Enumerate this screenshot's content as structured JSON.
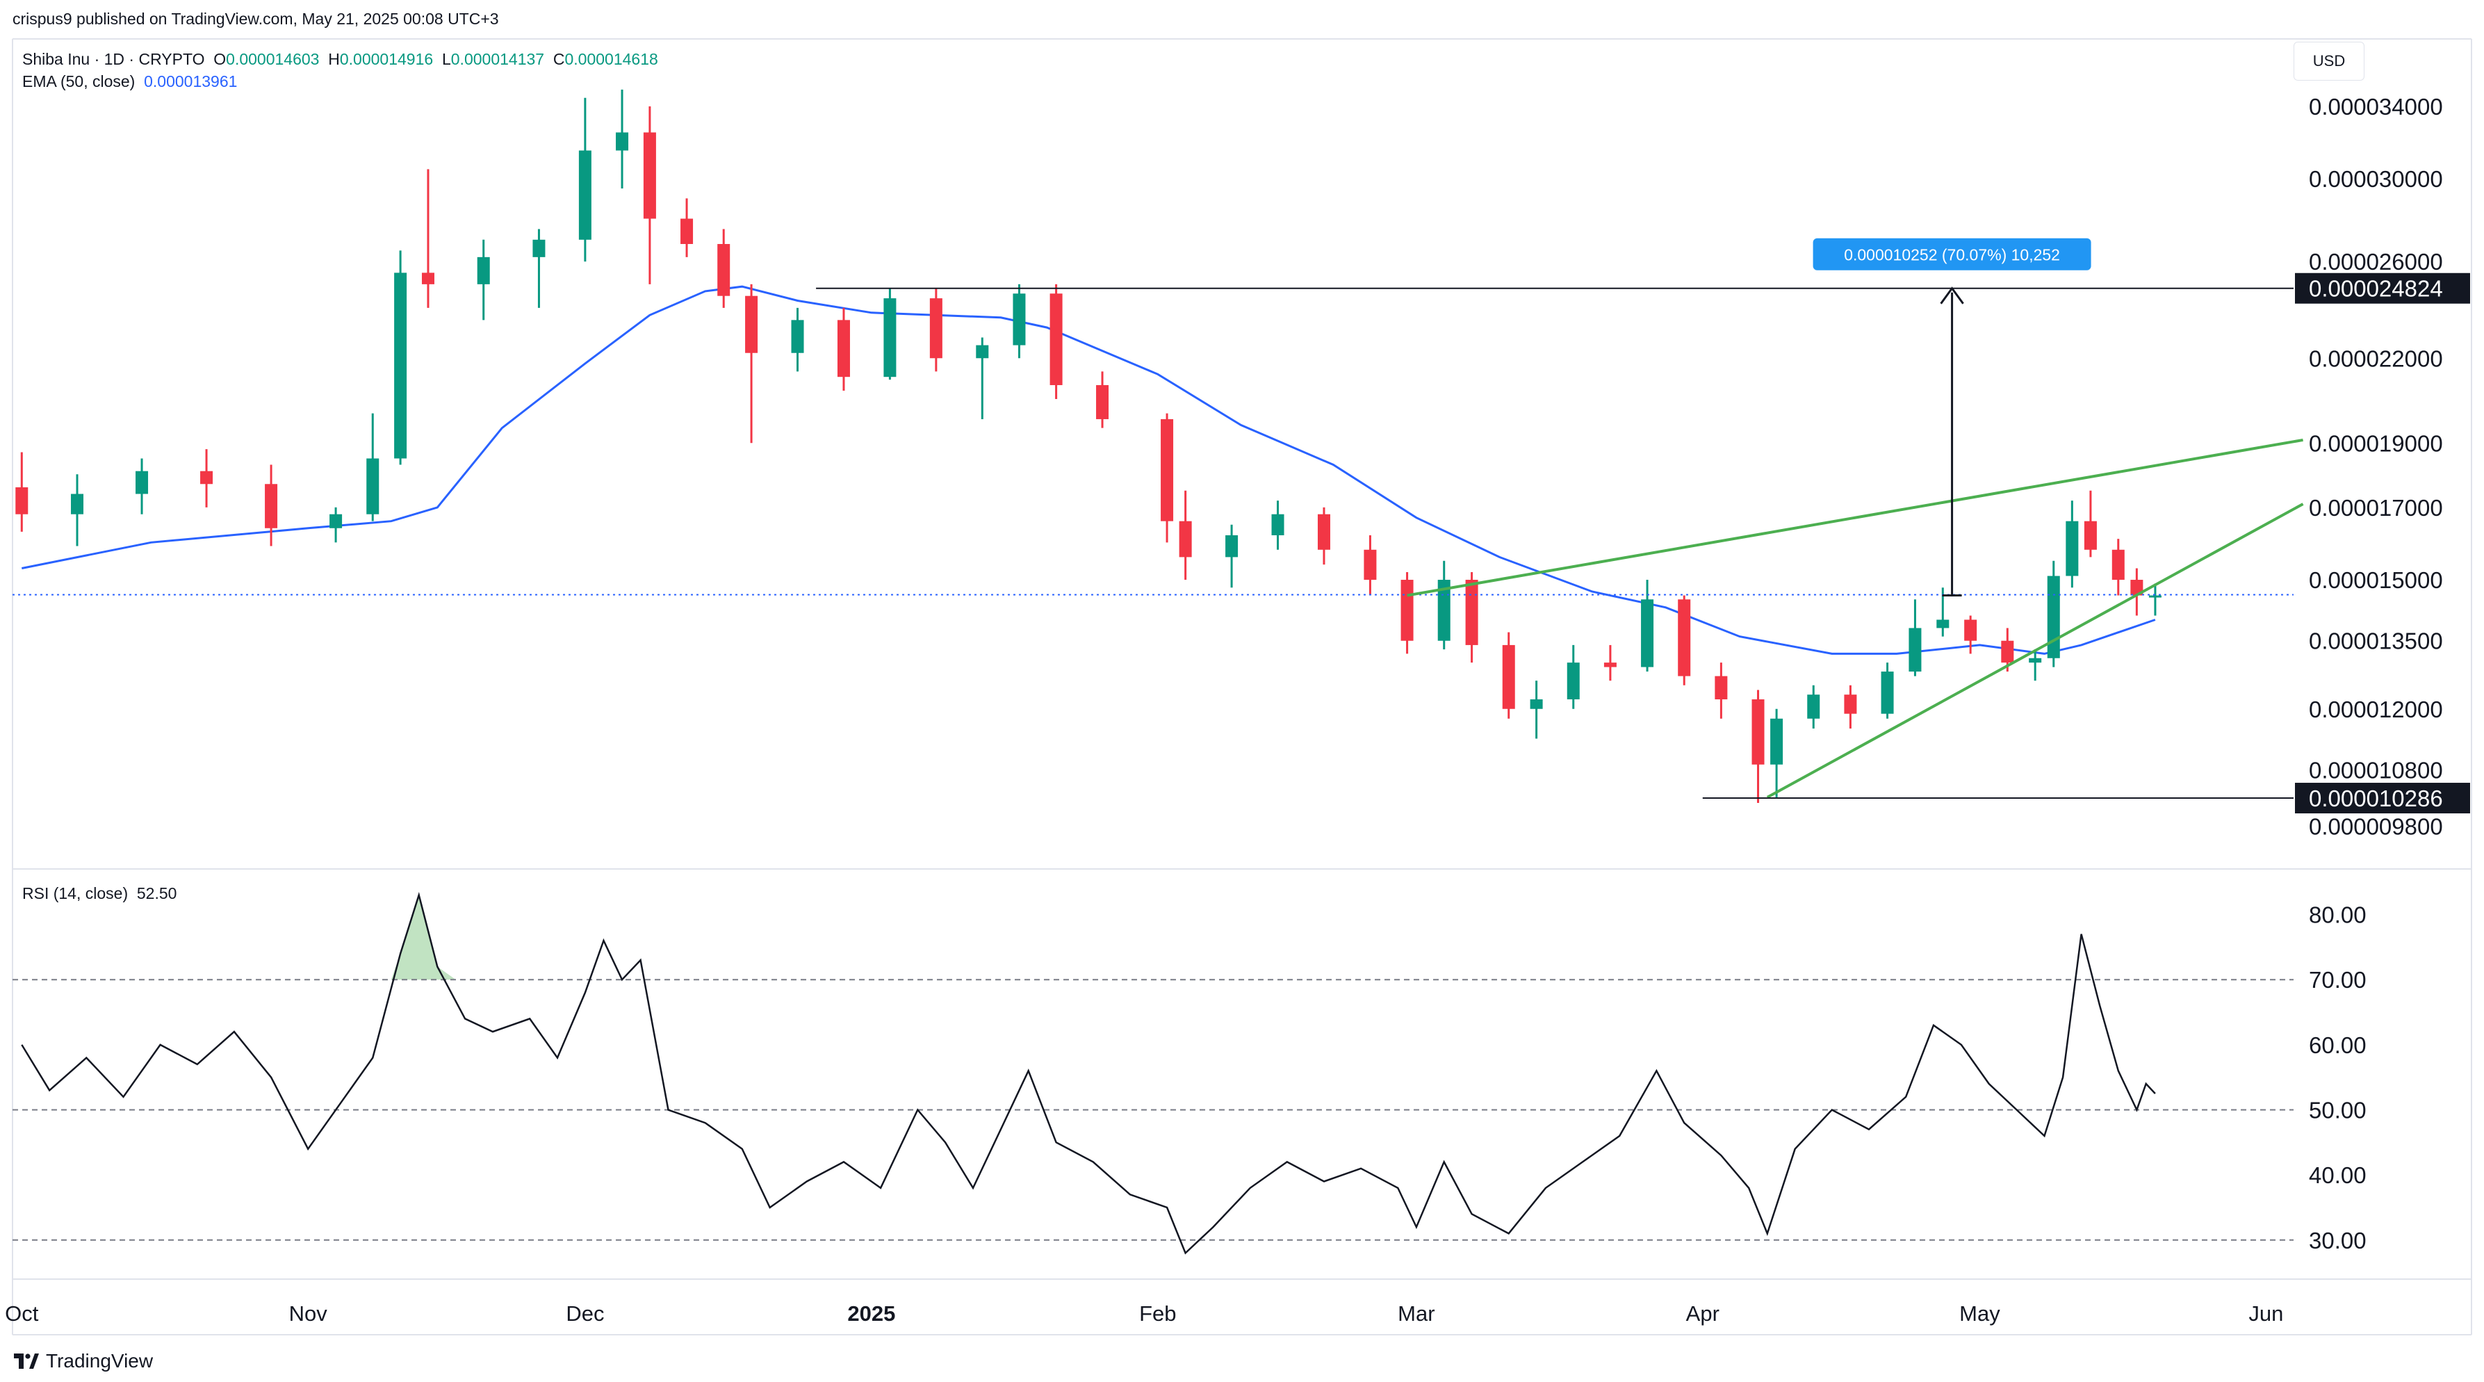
{
  "header": {
    "publisher_line": "crispus9 published on TradingView.com, May 21, 2025 00:08 UTC+3",
    "symbol": "Shiba Inu · 1D · CRYPTO",
    "ohlc": {
      "o_label": "O",
      "o": "0.000014603",
      "h_label": "H",
      "h": "0.000014916",
      "l_label": "L",
      "l": "0.000014137",
      "c_label": "C",
      "c": "0.000014618"
    },
    "ema_label": "EMA (50, close)",
    "ema_value": "0.000013961",
    "currency": "USD"
  },
  "rsi": {
    "label": "RSI (14, close)",
    "value": "52.50"
  },
  "footer": {
    "brand": "TradingView"
  },
  "annotation": {
    "measure_text": "0.000010252 (70.07%) 10,252"
  },
  "colors": {
    "up": "#089981",
    "down": "#f23645",
    "ema": "#2962ff",
    "wedge": "#4caf50",
    "measure_bg": "#2196f3"
  },
  "chart_data": [
    {
      "type": "candlestick",
      "title": "Shiba Inu · 1D · CRYPTO",
      "yscale": "log",
      "ylim": [
        9.1e-06,
        3.82e-05
      ],
      "price_ticks": [
        "0.000034000",
        "0.000030000",
        "0.000026000",
        "0.000022000",
        "0.000019000",
        "0.000017000",
        "0.000015000",
        "0.000013500",
        "0.000012000",
        "0.000010800",
        "0.000009800"
      ],
      "price_tick_values": [
        3.4e-05,
        3e-05,
        2.6e-05,
        2.2e-05,
        1.9e-05,
        1.7e-05,
        1.5e-05,
        1.35e-05,
        1.2e-05,
        1.08e-05,
        9.8e-06
      ],
      "highlighted_prices": [
        {
          "label": "0.000024824",
          "value": 2.4824e-05
        },
        {
          "label": "0.000010286",
          "value": 1.0286e-05
        }
      ],
      "x_ticks": [
        "Oct",
        "Nov",
        "Dec",
        "2025",
        "Feb",
        "Mar",
        "Apr",
        "May",
        "Jun"
      ],
      "x_tick_dates": [
        "2024-10-01",
        "2024-11-01",
        "2024-12-01",
        "2025-01-01",
        "2025-02-01",
        "2025-03-01",
        "2025-04-01",
        "2025-05-01",
        "2025-06-01"
      ],
      "last_close": 1.4618e-05,
      "series": [
        {
          "name": "EMA (50, close)",
          "points": [
            [
              "2024-10-01",
              1.53e-05
            ],
            [
              "2024-10-15",
              1.6e-05
            ],
            [
              "2024-11-01",
              1.64e-05
            ],
            [
              "2024-11-10",
              1.66e-05
            ],
            [
              "2024-11-15",
              1.7e-05
            ],
            [
              "2024-11-22",
              1.95e-05
            ],
            [
              "2024-12-01",
              2.18e-05
            ],
            [
              "2024-12-08",
              2.37e-05
            ],
            [
              "2024-12-14",
              2.47e-05
            ],
            [
              "2024-12-18",
              2.49e-05
            ],
            [
              "2024-12-24",
              2.43e-05
            ],
            [
              "2025-01-01",
              2.38e-05
            ],
            [
              "2025-01-15",
              2.36e-05
            ],
            [
              "2025-01-20",
              2.32e-05
            ],
            [
              "2025-02-01",
              2.14e-05
            ],
            [
              "2025-02-10",
              1.96e-05
            ],
            [
              "2025-02-20",
              1.83e-05
            ],
            [
              "2025-03-01",
              1.67e-05
            ],
            [
              "2025-03-10",
              1.56e-05
            ],
            [
              "2025-03-20",
              1.47e-05
            ],
            [
              "2025-03-28",
              1.43e-05
            ],
            [
              "2025-04-05",
              1.36e-05
            ],
            [
              "2025-04-15",
              1.32e-05
            ],
            [
              "2025-04-22",
              1.32e-05
            ],
            [
              "2025-05-01",
              1.34e-05
            ],
            [
              "2025-05-08",
              1.32e-05
            ],
            [
              "2025-05-12",
              1.34e-05
            ],
            [
              "2025-05-20",
              1.4e-05
            ]
          ]
        },
        {
          "name": "Rising wedge upper",
          "points": [
            [
              "2025-02-28",
              1.46e-05
            ],
            [
              "2025-06-05",
              1.91e-05
            ]
          ]
        },
        {
          "name": "Rising wedge lower",
          "points": [
            [
              "2025-04-08",
              1.03e-05
            ],
            [
              "2025-06-05",
              1.71e-05
            ]
          ]
        },
        {
          "name": "Resistance line",
          "points": [
            [
              "2024-12-26",
              2.4824e-05
            ],
            [
              "2025-06-05",
              2.4824e-05
            ]
          ]
        },
        {
          "name": "Support line",
          "points": [
            [
              "2025-04-01",
              1.0286e-05
            ],
            [
              "2025-06-05",
              1.0286e-05
            ]
          ]
        }
      ],
      "candles": [
        [
          "2024-10-01",
          1.76e-05,
          1.87e-05,
          1.63e-05,
          1.68e-05
        ],
        [
          "2024-10-07",
          1.68e-05,
          1.8e-05,
          1.59e-05,
          1.74e-05
        ],
        [
          "2024-10-14",
          1.74e-05,
          1.85e-05,
          1.68e-05,
          1.81e-05
        ],
        [
          "2024-10-21",
          1.81e-05,
          1.88e-05,
          1.7e-05,
          1.77e-05
        ],
        [
          "2024-10-28",
          1.77e-05,
          1.83e-05,
          1.59e-05,
          1.64e-05
        ],
        [
          "2024-11-04",
          1.64e-05,
          1.7e-05,
          1.6e-05,
          1.68e-05
        ],
        [
          "2024-11-08",
          1.68e-05,
          2e-05,
          1.66e-05,
          1.85e-05
        ],
        [
          "2024-11-11",
          1.85e-05,
          2.65e-05,
          1.83e-05,
          2.55e-05
        ],
        [
          "2024-11-14",
          2.55e-05,
          3.05e-05,
          2.4e-05,
          2.5e-05
        ],
        [
          "2024-11-20",
          2.5e-05,
          2.7e-05,
          2.35e-05,
          2.62e-05
        ],
        [
          "2024-11-26",
          2.62e-05,
          2.75e-05,
          2.4e-05,
          2.7e-05
        ],
        [
          "2024-12-01",
          2.7e-05,
          3.45e-05,
          2.6e-05,
          3.15e-05
        ],
        [
          "2024-12-05",
          3.15e-05,
          3.5e-05,
          2.95e-05,
          3.25e-05
        ],
        [
          "2024-12-08",
          3.25e-05,
          3.4e-05,
          2.5e-05,
          2.8e-05
        ],
        [
          "2024-12-12",
          2.8e-05,
          2.9e-05,
          2.62e-05,
          2.68e-05
        ],
        [
          "2024-12-16",
          2.68e-05,
          2.75e-05,
          2.4e-05,
          2.45e-05
        ],
        [
          "2024-12-19",
          2.45e-05,
          2.5e-05,
          1.9e-05,
          2.22e-05
        ],
        [
          "2024-12-24",
          2.22e-05,
          2.4e-05,
          2.15e-05,
          2.35e-05
        ],
        [
          "2024-12-29",
          2.35e-05,
          2.4e-05,
          2.08e-05,
          2.13e-05
        ],
        [
          "2025-01-03",
          2.13e-05,
          2.48e-05,
          2.12e-05,
          2.44e-05
        ],
        [
          "2025-01-08",
          2.44e-05,
          2.48e-05,
          2.15e-05,
          2.2e-05
        ],
        [
          "2025-01-13",
          2.2e-05,
          2.28e-05,
          1.98e-05,
          2.25e-05
        ],
        [
          "2025-01-17",
          2.25e-05,
          2.5e-05,
          2.2e-05,
          2.46e-05
        ],
        [
          "2025-01-21",
          2.46e-05,
          2.5e-05,
          2.05e-05,
          2.1e-05
        ],
        [
          "2025-01-26",
          2.1e-05,
          2.15e-05,
          1.95e-05,
          1.98e-05
        ],
        [
          "2025-02-02",
          1.98e-05,
          2e-05,
          1.6e-05,
          1.66e-05
        ],
        [
          "2025-02-04",
          1.66e-05,
          1.75e-05,
          1.5e-05,
          1.56e-05
        ],
        [
          "2025-02-09",
          1.56e-05,
          1.65e-05,
          1.48e-05,
          1.62e-05
        ],
        [
          "2025-02-14",
          1.62e-05,
          1.72e-05,
          1.58e-05,
          1.68e-05
        ],
        [
          "2025-02-19",
          1.68e-05,
          1.7e-05,
          1.54e-05,
          1.58e-05
        ],
        [
          "2025-02-24",
          1.58e-05,
          1.62e-05,
          1.46e-05,
          1.5e-05
        ],
        [
          "2025-02-28",
          1.5e-05,
          1.52e-05,
          1.32e-05,
          1.35e-05
        ],
        [
          "2025-03-04",
          1.35e-05,
          1.55e-05,
          1.33e-05,
          1.5e-05
        ],
        [
          "2025-03-07",
          1.5e-05,
          1.52e-05,
          1.3e-05,
          1.34e-05
        ],
        [
          "2025-03-11",
          1.34e-05,
          1.37e-05,
          1.18e-05,
          1.2e-05
        ],
        [
          "2025-03-14",
          1.2e-05,
          1.26e-05,
          1.14e-05,
          1.22e-05
        ],
        [
          "2025-03-18",
          1.22e-05,
          1.34e-05,
          1.2e-05,
          1.3e-05
        ],
        [
          "2025-03-22",
          1.3e-05,
          1.34e-05,
          1.26e-05,
          1.29e-05
        ],
        [
          "2025-03-26",
          1.29e-05,
          1.5e-05,
          1.28e-05,
          1.45e-05
        ],
        [
          "2025-03-30",
          1.45e-05,
          1.46e-05,
          1.25e-05,
          1.27e-05
        ],
        [
          "2025-04-03",
          1.27e-05,
          1.3e-05,
          1.18e-05,
          1.22e-05
        ],
        [
          "2025-04-07",
          1.22e-05,
          1.24e-05,
          1.02e-05,
          1.09e-05
        ],
        [
          "2025-04-09",
          1.09e-05,
          1.2e-05,
          1.03e-05,
          1.18e-05
        ],
        [
          "2025-04-13",
          1.18e-05,
          1.25e-05,
          1.16e-05,
          1.23e-05
        ],
        [
          "2025-04-17",
          1.23e-05,
          1.25e-05,
          1.16e-05,
          1.19e-05
        ],
        [
          "2025-04-21",
          1.19e-05,
          1.3e-05,
          1.18e-05,
          1.28e-05
        ],
        [
          "2025-04-24",
          1.28e-05,
          1.45e-05,
          1.27e-05,
          1.38e-05
        ],
        [
          "2025-04-27",
          1.38e-05,
          1.48e-05,
          1.36e-05,
          1.4e-05
        ],
        [
          "2025-04-30",
          1.4e-05,
          1.41e-05,
          1.32e-05,
          1.35e-05
        ],
        [
          "2025-05-04",
          1.35e-05,
          1.38e-05,
          1.28e-05,
          1.3e-05
        ],
        [
          "2025-05-07",
          1.3e-05,
          1.33e-05,
          1.26e-05,
          1.31e-05
        ],
        [
          "2025-05-09",
          1.31e-05,
          1.55e-05,
          1.29e-05,
          1.51e-05
        ],
        [
          "2025-05-11",
          1.51e-05,
          1.72e-05,
          1.48e-05,
          1.66e-05
        ],
        [
          "2025-05-13",
          1.66e-05,
          1.75e-05,
          1.56e-05,
          1.58e-05
        ],
        [
          "2025-05-16",
          1.58e-05,
          1.61e-05,
          1.46e-05,
          1.5e-05
        ],
        [
          "2025-05-18",
          1.5e-05,
          1.53e-05,
          1.41e-05,
          1.46e-05
        ],
        [
          "2025-05-20",
          1.46e-05,
          1.49e-05,
          1.41e-05,
          1.46e-05
        ]
      ]
    },
    {
      "type": "line",
      "title": "RSI (14, close)",
      "ylim": [
        24,
        87
      ],
      "y_ticks": [
        "80.00",
        "70.00",
        "60.00",
        "50.00",
        "40.00",
        "30.00"
      ],
      "y_tick_values": [
        80,
        70,
        60,
        50,
        40,
        30
      ],
      "reference_levels": [
        70,
        50,
        30
      ],
      "series": [
        {
          "name": "RSI (14, close)",
          "points": [
            [
              "2024-10-01",
              60
            ],
            [
              "2024-10-04",
              53
            ],
            [
              "2024-10-08",
              58
            ],
            [
              "2024-10-12",
              52
            ],
            [
              "2024-10-16",
              60
            ],
            [
              "2024-10-20",
              57
            ],
            [
              "2024-10-24",
              62
            ],
            [
              "2024-10-28",
              55
            ],
            [
              "2024-11-01",
              44
            ],
            [
              "2024-11-05",
              52
            ],
            [
              "2024-11-08",
              58
            ],
            [
              "2024-11-11",
              74
            ],
            [
              "2024-11-13",
              83
            ],
            [
              "2024-11-15",
              72
            ],
            [
              "2024-11-18",
              64
            ],
            [
              "2024-11-21",
              62
            ],
            [
              "2024-11-25",
              64
            ],
            [
              "2024-11-28",
              58
            ],
            [
              "2024-12-01",
              68
            ],
            [
              "2024-12-03",
              76
            ],
            [
              "2024-12-05",
              70
            ],
            [
              "2024-12-07",
              73
            ],
            [
              "2024-12-10",
              50
            ],
            [
              "2024-12-14",
              48
            ],
            [
              "2024-12-18",
              44
            ],
            [
              "2024-12-21",
              35
            ],
            [
              "2024-12-25",
              39
            ],
            [
              "2024-12-29",
              42
            ],
            [
              "2025-01-02",
              38
            ],
            [
              "2025-01-06",
              50
            ],
            [
              "2025-01-09",
              45
            ],
            [
              "2025-01-12",
              38
            ],
            [
              "2025-01-15",
              47
            ],
            [
              "2025-01-18",
              56
            ],
            [
              "2025-01-21",
              45
            ],
            [
              "2025-01-25",
              42
            ],
            [
              "2025-01-29",
              37
            ],
            [
              "2025-02-02",
              35
            ],
            [
              "2025-02-04",
              28
            ],
            [
              "2025-02-07",
              32
            ],
            [
              "2025-02-11",
              38
            ],
            [
              "2025-02-15",
              42
            ],
            [
              "2025-02-19",
              39
            ],
            [
              "2025-02-23",
              41
            ],
            [
              "2025-02-27",
              38
            ],
            [
              "2025-03-01",
              32
            ],
            [
              "2025-03-04",
              42
            ],
            [
              "2025-03-07",
              34
            ],
            [
              "2025-03-11",
              31
            ],
            [
              "2025-03-15",
              38
            ],
            [
              "2025-03-19",
              42
            ],
            [
              "2025-03-23",
              46
            ],
            [
              "2025-03-27",
              56
            ],
            [
              "2025-03-30",
              48
            ],
            [
              "2025-04-03",
              43
            ],
            [
              "2025-04-06",
              38
            ],
            [
              "2025-04-08",
              31
            ],
            [
              "2025-04-11",
              44
            ],
            [
              "2025-04-15",
              50
            ],
            [
              "2025-04-19",
              47
            ],
            [
              "2025-04-23",
              52
            ],
            [
              "2025-04-26",
              63
            ],
            [
              "2025-04-29",
              60
            ],
            [
              "2025-05-02",
              54
            ],
            [
              "2025-05-05",
              50
            ],
            [
              "2025-05-08",
              46
            ],
            [
              "2025-05-10",
              55
            ],
            [
              "2025-05-12",
              77
            ],
            [
              "2025-05-14",
              66
            ],
            [
              "2025-05-16",
              56
            ],
            [
              "2025-05-18",
              50
            ],
            [
              "2025-05-19",
              54
            ],
            [
              "2025-05-20",
              52.5
            ]
          ]
        }
      ]
    }
  ]
}
